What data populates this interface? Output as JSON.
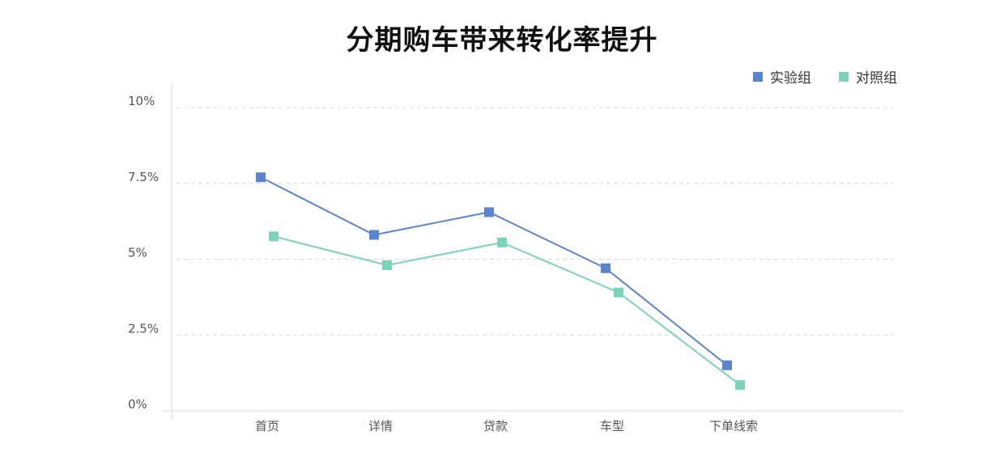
{
  "chart_data": {
    "type": "line",
    "title": "分期购车带来转化率提升",
    "xlabel": "",
    "ylabel": "",
    "categories": [
      "首页",
      "详情",
      "贷款",
      "车型",
      "下单线索"
    ],
    "y_ticks": [
      "0%",
      "2.5%",
      "5%",
      "7.5%",
      "10%"
    ],
    "ylim": [
      0,
      10
    ],
    "y_unit": "%",
    "grid": true,
    "legend_position": "top-right",
    "series": [
      {
        "name": "实验组",
        "values": [
          7.7,
          5.8,
          6.55,
          4.7,
          1.5
        ],
        "color": "#5b84cf",
        "marker": "square"
      },
      {
        "name": "对照组",
        "values": [
          5.75,
          4.8,
          5.55,
          3.9,
          0.85
        ],
        "color": "#7cd3b9",
        "marker": "square"
      }
    ]
  }
}
